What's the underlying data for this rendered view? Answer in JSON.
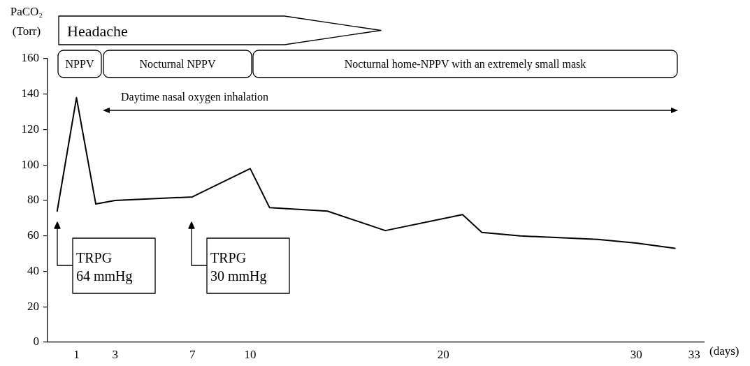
{
  "chart_data": {
    "type": "line",
    "ylabel": "PaCO₂\n(Torr)",
    "xlabel": "(days)",
    "x": [
      0,
      1,
      2,
      3,
      7,
      10,
      11,
      14,
      17,
      21,
      22,
      24,
      28,
      30,
      32
    ],
    "values": [
      74,
      138,
      78,
      80,
      82,
      98,
      76,
      74,
      63,
      72,
      62,
      60,
      58,
      56,
      53
    ],
    "color": "#000000",
    "xlim": [
      -0.5,
      33.5
    ],
    "xticks": [
      1,
      3,
      7,
      10,
      20,
      30,
      33
    ],
    "ylim": [
      0,
      160
    ],
    "yticks": [
      0,
      20,
      40,
      60,
      80,
      100,
      120,
      140,
      160
    ],
    "grid": false,
    "marker": "none",
    "line_style": "solid",
    "annotations": [
      "Headache",
      "NPPV",
      "Nocturnal NPPV",
      "Nocturnal home-NPPV with an extremely small mask",
      "Daytime nasal oxygen inhalation",
      "TRPG\n64 mmHg",
      "TRPG\n30 mmHg"
    ]
  }
}
